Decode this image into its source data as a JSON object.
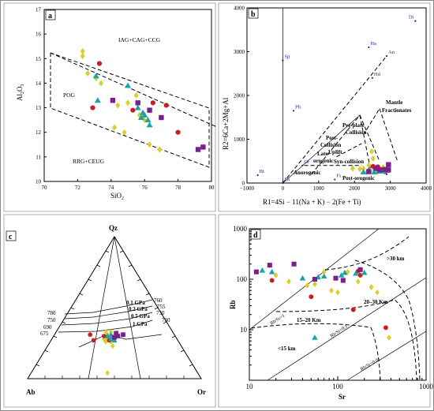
{
  "colors": {
    "yellow": "#d8cf2a",
    "red": "#c81e1e",
    "cyan": "#1aa3a8",
    "purple": "#7a1f8e",
    "blue_label": "#1a1aa0"
  },
  "symbols": {
    "yellow": "diamond",
    "red": "circle",
    "cyan": "triangle",
    "purple": "square"
  },
  "chart_data": [
    {
      "panel": "a",
      "type": "scatter",
      "xlabel": "SiO2",
      "ylabel": "Al2O3",
      "xlim": [
        70,
        80
      ],
      "ylim": [
        10,
        17
      ],
      "xticks": [
        "70",
        "72",
        "74",
        "76",
        "78",
        "80"
      ],
      "yticks": [
        "10",
        "11",
        "12",
        "13",
        "14",
        "15",
        "16",
        "17"
      ],
      "fields": [
        "IAG+CAG+CCG",
        "POG",
        "RRG+CEUG"
      ],
      "series": [
        {
          "color": "yellow",
          "points": [
            [
              72.3,
              15.3
            ],
            [
              72.3,
              15.1
            ],
            [
              72.6,
              14.4
            ],
            [
              73.1,
              14.2
            ],
            [
              73.4,
              14.0
            ],
            [
              74.2,
              12.2
            ],
            [
              74.8,
              12.0
            ],
            [
              75.0,
              13.2
            ],
            [
              75.5,
              13.5
            ],
            [
              76.0,
              12.5
            ],
            [
              76.3,
              11.5
            ],
            [
              76.9,
              11.3
            ],
            [
              75.7,
              12.7
            ],
            [
              74.4,
              13.1
            ]
          ]
        },
        {
          "color": "red",
          "points": [
            [
              73.3,
              14.8
            ],
            [
              72.9,
              13.0
            ],
            [
              75.3,
              12.9
            ],
            [
              76.5,
              13.2
            ],
            [
              77.3,
              13.1
            ],
            [
              78.0,
              12.0
            ]
          ]
        },
        {
          "color": "cyan",
          "points": [
            [
              73.1,
              14.3
            ],
            [
              73.2,
              13.3
            ],
            [
              75.0,
              13.9
            ],
            [
              75.6,
              13.0
            ],
            [
              75.9,
              12.8
            ],
            [
              76.0,
              12.7
            ],
            [
              76.2,
              12.5
            ],
            [
              76.3,
              12.3
            ],
            [
              75.8,
              12.6
            ]
          ]
        },
        {
          "color": "purple",
          "points": [
            [
              74.1,
              13.3
            ],
            [
              75.6,
              13.2
            ],
            [
              76.3,
              12.9
            ],
            [
              77.0,
              12.6
            ],
            [
              79.2,
              11.3
            ],
            [
              79.5,
              11.4
            ]
          ]
        }
      ]
    },
    {
      "panel": "b",
      "type": "scatter",
      "xlabel": "R1=4Si − 11(Na + K) − 2(Fe + Ti)",
      "ylabel": "R2=6Ca+2Mg+Al",
      "xlim": [
        -1000,
        4000
      ],
      "ylim": [
        0,
        4000
      ],
      "xticks": [
        "−1000",
        "0",
        "1000",
        "2000",
        "3000",
        "4000"
      ],
      "yticks": [
        "0",
        "1000",
        "2000",
        "3000",
        "4000"
      ],
      "fields": [
        "Mantle Fractionates",
        "Pre-plate Collision",
        "Post- Collision Uplift",
        "Late- orogenic",
        "Syn-collision",
        "Anorogenic",
        "Post-orogenic"
      ],
      "minerals": [
        "Di",
        "Sp",
        "Ha",
        "An",
        "Hd",
        "Ph",
        "Bt",
        "Or",
        "Fa",
        "Fs",
        "Ab"
      ],
      "series": [
        {
          "color": "yellow",
          "points": [
            [
              2150,
              320
            ],
            [
              2250,
              330
            ],
            [
              2400,
              410
            ],
            [
              2550,
              300
            ],
            [
              2700,
              340
            ],
            [
              2800,
              360
            ],
            [
              2480,
              720
            ],
            [
              2520,
              560
            ],
            [
              1950,
              330
            ],
            [
              2650,
              250
            ],
            [
              2350,
              250
            ]
          ]
        },
        {
          "color": "red",
          "points": [
            [
              2520,
              380
            ],
            [
              2650,
              370
            ],
            [
              2750,
              300
            ],
            [
              2950,
              290
            ],
            [
              2850,
              260
            ]
          ]
        },
        {
          "color": "cyan",
          "points": [
            [
              2250,
              250
            ],
            [
              2400,
              300
            ],
            [
              2550,
              250
            ],
            [
              2700,
              270
            ],
            [
              2800,
              270
            ],
            [
              2600,
              320
            ]
          ]
        },
        {
          "color": "purple",
          "points": [
            [
              2600,
              340
            ],
            [
              2700,
              300
            ],
            [
              2850,
              310
            ],
            [
              2950,
              300
            ],
            [
              2950,
              420
            ],
            [
              2400,
              260
            ]
          ]
        }
      ]
    },
    {
      "panel": "c",
      "type": "ternary",
      "apices": [
        "Qz",
        "Ab",
        "Or"
      ],
      "pressure_labels": [
        "0.1 GPa",
        "0.2 GPa",
        "0.5 GPa",
        "1 GPa"
      ],
      "temperature_labels_left": [
        "780",
        "750",
        "690",
        "675"
      ],
      "temperature_labels_right": [
        "760",
        "755",
        "730",
        "730"
      ],
      "series": [
        {
          "color": "yellow",
          "points": [
            [
              0.46,
              0.28
            ],
            [
              0.46,
              0.31
            ],
            [
              0.45,
              0.33
            ],
            [
              0.47,
              0.3
            ],
            [
              0.48,
              0.33
            ],
            [
              0.5,
              0.31
            ],
            [
              0.48,
              0.26
            ],
            [
              0.49,
              0.23
            ],
            [
              0.44,
              0.28
            ],
            [
              0.45,
              0.26
            ],
            [
              0.47,
              0.29
            ],
            [
              0.46,
              0.04
            ]
          ]
        },
        {
          "color": "red",
          "points": [
            [
              0.36,
              0.31
            ],
            [
              0.38,
              0.27
            ],
            [
              0.44,
              0.3
            ],
            [
              0.47,
              0.27
            ],
            [
              0.51,
              0.3
            ],
            [
              0.49,
              0.28
            ]
          ]
        },
        {
          "color": "cyan",
          "points": [
            [
              0.48,
              0.31
            ],
            [
              0.46,
              0.3
            ],
            [
              0.48,
              0.28
            ],
            [
              0.5,
              0.27
            ],
            [
              0.49,
              0.29
            ]
          ]
        },
        {
          "color": "purple",
          "points": [
            [
              0.51,
              0.32
            ],
            [
              0.52,
              0.3
            ],
            [
              0.55,
              0.31
            ],
            [
              0.5,
              0.29
            ]
          ]
        }
      ]
    },
    {
      "panel": "d",
      "type": "scatter",
      "scale": "log",
      "xlabel": "Sr",
      "ylabel": "Rb",
      "xlim": [
        10,
        1000
      ],
      "ylim": [
        1,
        1000
      ],
      "xticks": [
        "10",
        "100",
        "1000"
      ],
      "yticks": [
        "1",
        "10",
        "100",
        "1000"
      ],
      "fields": [
        ">30 km",
        "20–30 Km",
        "15–20 Km",
        "<15 km"
      ],
      "ratio_lines": [
        "Rb/Sr=1",
        "Rb/Sr=0.1",
        "Rb/Sr=0.01"
      ],
      "series": [
        {
          "color": "yellow",
          "points": [
            [
              20,
              120
            ],
            [
              28,
              90
            ],
            [
              45,
              75
            ],
            [
              55,
              80
            ],
            [
              70,
              140
            ],
            [
              85,
              60
            ],
            [
              100,
              55
            ],
            [
              130,
              140
            ],
            [
              170,
              90
            ],
            [
              240,
              70
            ],
            [
              280,
              55
            ],
            [
              380,
              7
            ]
          ]
        },
        {
          "color": "red",
          "points": [
            [
              18,
              95
            ],
            [
              50,
              45
            ],
            [
              150,
              25
            ],
            [
              170,
              145
            ],
            [
              180,
              120
            ],
            [
              350,
              11
            ]
          ]
        },
        {
          "color": "cyan",
          "points": [
            [
              14,
              150
            ],
            [
              18,
              140
            ],
            [
              40,
              105
            ],
            [
              60,
              110
            ],
            [
              70,
              115
            ],
            [
              110,
              120
            ],
            [
              120,
              135
            ],
            [
              160,
              130
            ],
            [
              200,
              135
            ],
            [
              55,
              7
            ]
          ]
        },
        {
          "color": "purple",
          "points": [
            [
              12,
              140
            ],
            [
              17,
              190
            ],
            [
              32,
              200
            ],
            [
              55,
              100
            ],
            [
              95,
              105
            ],
            [
              115,
              95
            ],
            [
              180,
              155
            ]
          ]
        }
      ]
    }
  ],
  "panels": {
    "a": {
      "letter": "a",
      "xlabel": "SiO",
      "xsub": "2",
      "ylabel": "Al",
      "ysub1": "2",
      "ymid": "O",
      "ysub2": "3",
      "fields": [
        "IAG+CAG+CCG",
        "POG",
        "RRG+CEUG"
      ]
    },
    "b": {
      "letter": "b",
      "xlabel": "R1=4Si − 11(Na + K) − 2(Fe + Ti)",
      "ylabel": "R2=6Ca+2Mg+Al",
      "f_mantle1": "Mantle",
      "f_mantle2": "Fractionates",
      "f_preplate1": "Pre-plate",
      "f_preplate2": "Collision",
      "f_post1": "Post-",
      "f_post2": "Collision",
      "f_post3": "Uplift",
      "f_late1": "Late-",
      "f_late2": "orogenic",
      "f_syn": "Syn-collision",
      "f_anoro": "Anorogenic",
      "f_postoro": "Post-orogenic",
      "m": [
        "Di",
        "Sp",
        "Ha",
        "An",
        "Hd",
        "Ph",
        "Bt",
        "Or",
        "Fa",
        "Fs",
        "Ab"
      ]
    },
    "c": {
      "letter": "c",
      "qz": "Qz",
      "ab": "Ab",
      "or": "Or",
      "p01": "0.1 GPa",
      "p02": "0.2 GPa",
      "p05": "0.5 GPa",
      "p1": "1 GPa",
      "t780": "780",
      "t750": "750",
      "t690": "690",
      "t675": "675",
      "t760": "760",
      "t755": "755",
      "t730a": "730",
      "t730b": "730"
    },
    "d": {
      "letter": "d",
      "xlabel": "Sr",
      "ylabel": "Rb",
      "f30": ">30 km",
      "f2030": "20–30 Km",
      "f1520": "15–20 Km",
      "f15": "<15 km",
      "r1": "Rb/Sr=1",
      "r01": "Rb/Sr=0.1",
      "r001": "Rb/Sr=0.01"
    }
  }
}
